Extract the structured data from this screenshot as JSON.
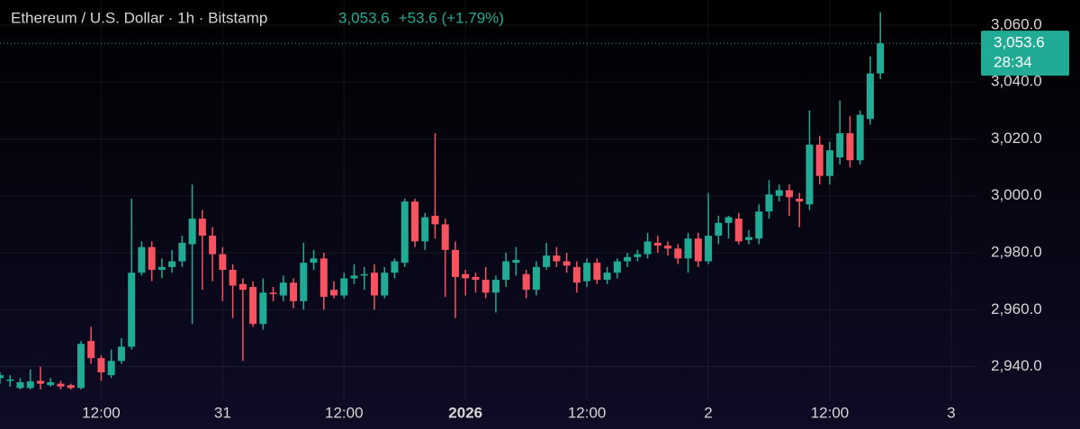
{
  "chart_data": {
    "type": "candlestick",
    "title": "Ethereum / U.S. Dollar · 1h · Bitstamp",
    "last_price": "3,053.6",
    "change": "+53.6 (+1.79%)",
    "countdown": "28:34",
    "up_color": "#22ab94",
    "down_color": "#f7525f",
    "grid": true,
    "x": [
      -10,
      -9,
      -8,
      -7,
      -6,
      -5,
      -4,
      -3,
      -2,
      -1,
      0,
      1,
      2,
      3,
      4,
      5,
      6,
      7,
      8,
      9,
      10,
      11,
      12,
      13,
      14,
      15,
      16,
      17,
      18,
      19,
      20,
      21,
      22,
      23,
      24,
      25,
      26,
      27,
      28,
      29,
      30,
      31,
      32,
      33,
      34,
      35,
      36,
      37,
      38,
      39,
      40,
      41,
      42,
      43,
      44,
      45,
      46,
      47,
      48,
      49,
      50,
      51,
      52,
      53,
      54,
      55,
      56,
      57,
      58,
      59,
      60,
      61,
      62,
      63,
      64,
      65,
      66,
      67,
      68,
      69,
      70,
      71,
      72,
      73,
      74,
      75,
      76,
      77
    ],
    "open": [
      2936,
      2935,
      2932.5,
      2932.5,
      2935,
      2933.5,
      2934,
      2933.5,
      2932.5,
      2949,
      2943,
      2937,
      2942,
      2947,
      2973,
      2982,
      2974,
      2975,
      2977,
      2983,
      2992,
      2986,
      2979.5,
      2974,
      2969,
      2968,
      2955,
      2966,
      2965,
      2969.5,
      2963,
      2976.5,
      2978,
      2967,
      2965,
      2971,
      2972,
      2973,
      2965,
      2973,
      2976.5,
      2998,
      2984,
      2993,
      2990,
      2981,
      2972.5,
      2971.5,
      2970.5,
      2966,
      2970.5,
      2976.5,
      2972.5,
      2967,
      2975,
      2979,
      2977,
      2975,
      2970,
      2976.5,
      2970.5,
      2973,
      2977,
      2978.5,
      2979.5,
      2983.5,
      2982.5,
      2981.5,
      2978,
      2985,
      2977,
      2986,
      2990.5,
      2992,
      2984.5,
      2985,
      2994.5,
      3000,
      3002,
      2999,
      2997,
      3018,
      3007,
      3013.5,
      3022,
      3012.5,
      3027,
      3043
    ],
    "high": [
      2938,
      2937,
      2936,
      2939,
      2940,
      2936,
      2935,
      2934,
      2949,
      2954,
      2944,
      2946,
      2950,
      2999,
      2984,
      2984,
      2978,
      2981,
      2986,
      3004,
      2995,
      2989,
      2982,
      2976,
      2971,
      2970,
      2971,
      2968,
      2972,
      2971,
      2983.5,
      2981,
      2980,
      2970,
      2973,
      2976,
      2975,
      2976,
      2975,
      2978,
      2999,
      2999,
      2994,
      3022,
      2992,
      2984,
      2974,
      2973,
      2975,
      2972,
      2980,
      2982,
      2974,
      2977,
      2983.5,
      2982,
      2980,
      2977,
      2978,
      2978,
      2975,
      2978,
      2980,
      2981,
      2987,
      2986,
      2984,
      2983,
      2987,
      2987,
      3001,
      2993,
      2993,
      2994,
      2988,
      2997,
      3005.5,
      3004,
      3004,
      3001,
      3030,
      3021,
      3019,
      3033.5,
      3028,
      3030,
      3049,
      3064.5
    ],
    "low": [
      2934,
      2933,
      2932,
      2932,
      2932,
      2933,
      2932,
      2932,
      2932,
      2941,
      2935,
      2936,
      2941,
      2946,
      2972,
      2970,
      2971,
      2973,
      2975,
      2955,
      2967,
      2970,
      2963,
      2957,
      2942,
      2954,
      2953,
      2963,
      2963,
      2960.5,
      2960,
      2974,
      2960,
      2964,
      2964,
      2969,
      2967,
      2960,
      2964,
      2971,
      2975,
      2982,
      2981,
      2985,
      2964.5,
      2957,
      2965,
      2966,
      2964,
      2959,
      2968,
      2972,
      2964,
      2965,
      2974,
      2975,
      2973,
      2966,
      2968,
      2969,
      2969,
      2971,
      2975,
      2977,
      2978,
      2980,
      2979,
      2976,
      2973,
      2975,
      2976,
      2983,
      2985,
      2983,
      2983,
      2983,
      2992,
      2998,
      2993,
      2989,
      2995,
      3004,
      3004,
      3011,
      3010,
      3011,
      3025,
      3041
    ],
    "close": [
      2937,
      2935.5,
      2934.5,
      2934.8,
      2934,
      2934.5,
      2933,
      2932.5,
      2948,
      2943,
      2938,
      2942,
      2947,
      2973,
      2982,
      2974,
      2975,
      2977,
      2983.5,
      2992,
      2986,
      2979.5,
      2974,
      2968.5,
      2967,
      2955,
      2966,
      2965.5,
      2969.5,
      2963,
      2976.5,
      2978,
      2964.5,
      2965,
      2971,
      2972,
      2972.5,
      2965,
      2973,
      2977,
      2998,
      2984,
      2992.5,
      2990,
      2981,
      2971.5,
      2971,
      2970.5,
      2966,
      2970.5,
      2977,
      2977.5,
      2967,
      2975,
      2979,
      2977,
      2975.5,
      2969.5,
      2976.5,
      2970.5,
      2973,
      2977,
      2978.5,
      2979.5,
      2984,
      2982.5,
      2981.5,
      2978,
      2985,
      2977,
      2986,
      2990.5,
      2992.5,
      2984,
      2985.5,
      2994.5,
      3000.5,
      3002,
      2999.5,
      2998,
      3018,
      3007,
      3016,
      3022,
      3012.5,
      3028.5,
      3043,
      3053.6
    ],
    "xlim": [
      -10,
      86.5
    ],
    "xticks": [
      {
        "value": 0,
        "label": "12:00"
      },
      {
        "value": 12,
        "label": "31"
      },
      {
        "value": 24,
        "label": "12:00"
      },
      {
        "value": 36,
        "label": "2026"
      },
      {
        "value": 48,
        "label": "12:00"
      },
      {
        "value": 60,
        "label": "2"
      },
      {
        "value": 72,
        "label": "12:00"
      },
      {
        "value": 84,
        "label": "3"
      }
    ],
    "ylim": [
      2928.2,
      3068.8
    ],
    "yticks": [
      {
        "value": 2940,
        "label": "2,940.0"
      },
      {
        "value": 2960,
        "label": "2,960.0"
      },
      {
        "value": 2980,
        "label": "2,980.0"
      },
      {
        "value": 3000,
        "label": "3,000.0"
      },
      {
        "value": 3020,
        "label": "3,020.0"
      },
      {
        "value": 3040,
        "label": "3,040.0"
      },
      {
        "value": 3060,
        "label": "3,060.0"
      }
    ]
  }
}
